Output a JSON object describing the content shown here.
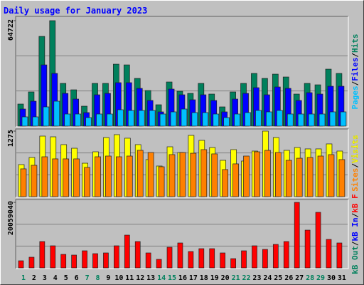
{
  "chart_data": [
    {
      "type": "bar",
      "title": "Daily usage for January 2023",
      "title_color": "#0000ff",
      "legend_separator": "/",
      "series": [
        {
          "name": "Hits",
          "color": "#00805c",
          "values": [
            13547,
            20976,
            55062,
            64722,
            26220,
            22287,
            12236,
            26220,
            26220,
            38019,
            37582,
            29279,
            21850,
            13110,
            27094,
            21413,
            20102,
            26220,
            19665,
            11799,
            20976,
            26220,
            32338,
            29279,
            31901,
            30153,
            19665,
            26220,
            25346,
            34960,
            32338
          ]
        },
        {
          "name": "Files",
          "color": "#0000ff",
          "values": [
            10488,
            15295,
            37582,
            32338,
            20102,
            16606,
            8303,
            19228,
            20102,
            26657,
            26657,
            23161,
            15732,
            8740,
            22724,
            19228,
            16169,
            19228,
            15732,
            8740,
            16606,
            20102,
            23598,
            19228,
            24035,
            23161,
            15732,
            20539,
            19665,
            24472,
            24472
          ]
        },
        {
          "name": "Pages",
          "color": "#00c0ff",
          "values": [
            5681,
            5681,
            11799,
            15295,
            7429,
            7429,
            5244,
            7429,
            7429,
            10051,
            9614,
            9614,
            9614,
            7429,
            8740,
            10488,
            8303,
            8303,
            7429,
            5244,
            7429,
            8303,
            9614,
            8740,
            9614,
            7429,
            7429,
            7429,
            7429,
            8740,
            8740
          ]
        }
      ],
      "ylim": [
        0,
        64722
      ],
      "yticks": [
        64722
      ]
    },
    {
      "type": "bar",
      "legend_separator": "/",
      "series": [
        {
          "name": "Visits",
          "color": "#ffff00",
          "values": [
            624,
            762,
            1178,
            1164,
            1012,
            942,
            651,
            873,
            1150,
            1206,
            1137,
            1012,
            721,
            596,
            970,
            859,
            1192,
            1095,
            956,
            707,
            915,
            693,
            887,
            1275,
            1150,
            901,
            956,
            929,
            929,
            1026,
            887
          ]
        },
        {
          "name": "Sites",
          "color": "#ff8000",
          "values": [
            541,
            610,
            776,
            735,
            735,
            735,
            568,
            776,
            790,
            776,
            790,
            901,
            859,
            582,
            818,
            859,
            845,
            915,
            832,
            527,
            638,
            790,
            873,
            901,
            859,
            707,
            748,
            762,
            790,
            818,
            721
          ]
        }
      ],
      "ylim": [
        0,
        1275
      ],
      "yticks": [
        1275
      ]
    },
    {
      "type": "bar",
      "legend_separator": "/",
      "series": [
        {
          "name": "kB F",
          "color": "#ff0000",
          "values": [
            2180330,
            3270495,
            8067221,
            6759023,
            4142627,
            3924594,
            5232792,
            4360660,
            4578693,
            6759023,
            10029518,
            8067221,
            4578693,
            2616396,
            6322957,
            7631155,
            5014759,
            5886891,
            5886891,
            4578693,
            2834429,
            5232792,
            6759023,
            5668858,
            7195089,
            8067221,
            20059040,
            11555749,
            17006574,
            8721320,
            7631155
          ]
        },
        {
          "name": "kB In",
          "color": "#0000ff"
        },
        {
          "name": "kB Out",
          "color": "#00805c"
        }
      ],
      "ylim": [
        0,
        20059040
      ],
      "yticks": [
        20059040
      ],
      "categories": [
        "1",
        "2",
        "3",
        "4",
        "5",
        "6",
        "7",
        "8",
        "9",
        "10",
        "11",
        "12",
        "13",
        "14",
        "15",
        "16",
        "17",
        "18",
        "19",
        "20",
        "21",
        "22",
        "23",
        "24",
        "25",
        "26",
        "27",
        "28",
        "29",
        "30",
        "31"
      ],
      "category_colors": [
        "#00805c",
        "#000000",
        "#000000",
        "#000000",
        "#000000",
        "#000000",
        "#00805c",
        "#00805c",
        "#000000",
        "#000000",
        "#000000",
        "#000000",
        "#000000",
        "#00805c",
        "#00805c",
        "#000000",
        "#000000",
        "#000000",
        "#000000",
        "#000000",
        "#00805c",
        "#00805c",
        "#000000",
        "#000000",
        "#000000",
        "#000000",
        "#000000",
        "#00805c",
        "#00805c",
        "#000000",
        "#000000"
      ]
    }
  ]
}
